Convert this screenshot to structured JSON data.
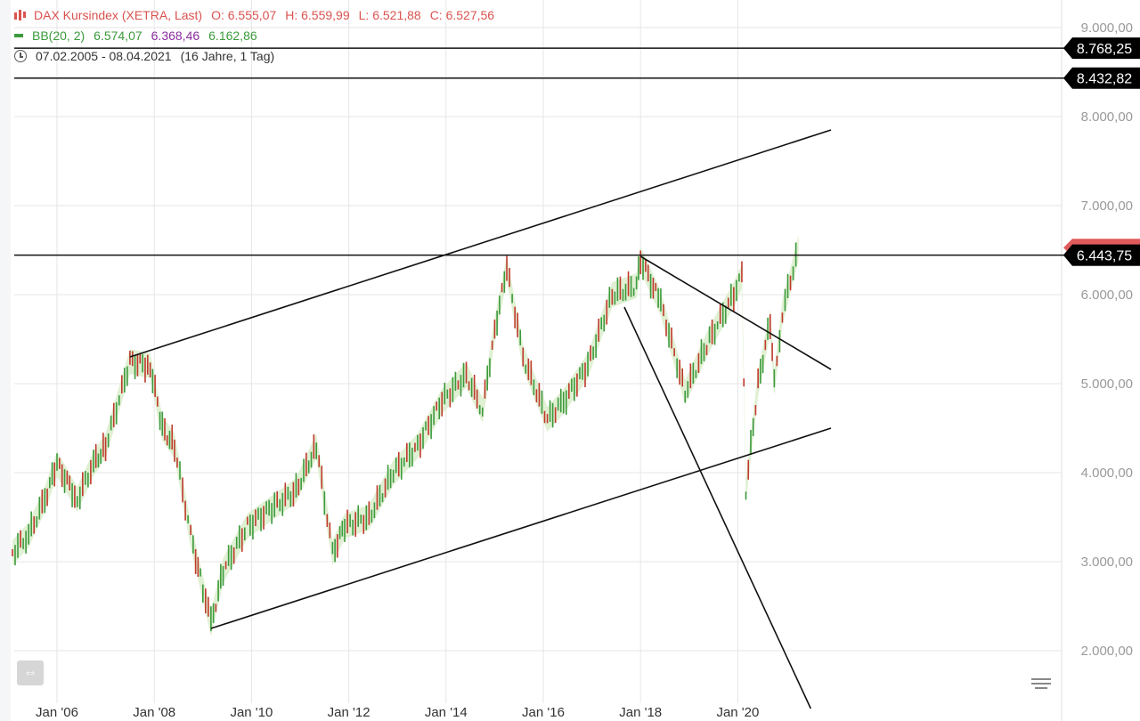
{
  "legend": {
    "instrument": "DAX Kursindex (XETRA, Last)",
    "open": "O: 6.555,07",
    "high": "H: 6.559,99",
    "low": "L: 6.521,88",
    "close": "C: 6.527,56",
    "bb_label": "BB(20, 2)",
    "bb_upper": "6.574,07",
    "bb_mid": "6.368,46",
    "bb_lower": "6.162,86",
    "date_range": "07.02.2005 - 08.04.2021",
    "period": "(16 Jahre, 1 Tag)"
  },
  "colors": {
    "up": "#3c9a3c",
    "down": "#c0392b",
    "band": "#d8ecc8",
    "line": "#111111",
    "grid": "#e6e6e6",
    "axis_text": "#999999",
    "current_tag": "#e05b5b"
  },
  "icons": {
    "legend_candle": "candlestick-icon",
    "legend_bb": "bollinger-icon",
    "legend_time": "clock-icon",
    "scroll": "scroll-handle-icon",
    "menu": "menu-icon"
  },
  "chart_data": {
    "type": "line",
    "title": "DAX Kursindex (XETRA, Last)",
    "x_ticks": [
      "Jan '06",
      "Jan '08",
      "Jan '10",
      "Jan '12",
      "Jan '14",
      "Jan '16",
      "Jan '18",
      "Jan '20"
    ],
    "y_ticks": [
      "9.000,00",
      "8.000,00",
      "7.000,00",
      "6.000,00",
      "5.000,00",
      "4.000,00",
      "3.000,00",
      "2.000,00"
    ],
    "y_tick_values": [
      9000,
      8000,
      7000,
      6000,
      5000,
      4000,
      3000,
      2000
    ],
    "ylim": [
      1600,
      9300
    ],
    "xlim": [
      "2005-02-07",
      "2021-04-08"
    ],
    "grid": true,
    "series": [
      {
        "values": [
          {
            "x": "2005-02",
            "y": 3100
          },
          {
            "x": "2005-06",
            "y": 3300
          },
          {
            "x": "2005-10",
            "y": 3700
          },
          {
            "x": "2006-01",
            "y": 4100
          },
          {
            "x": "2006-06",
            "y": 3700
          },
          {
            "x": "2006-10",
            "y": 4100
          },
          {
            "x": "2007-01",
            "y": 4300
          },
          {
            "x": "2007-07",
            "y": 5250
          },
          {
            "x": "2007-12",
            "y": 5200
          },
          {
            "x": "2008-03",
            "y": 4500
          },
          {
            "x": "2008-06",
            "y": 4300
          },
          {
            "x": "2008-10",
            "y": 3300
          },
          {
            "x": "2009-01",
            "y": 2700
          },
          {
            "x": "2009-03",
            "y": 2300
          },
          {
            "x": "2009-06",
            "y": 2900
          },
          {
            "x": "2009-12",
            "y": 3400
          },
          {
            "x": "2010-06",
            "y": 3600
          },
          {
            "x": "2010-12",
            "y": 3800
          },
          {
            "x": "2011-05",
            "y": 4300
          },
          {
            "x": "2011-09",
            "y": 3100
          },
          {
            "x": "2011-12",
            "y": 3400
          },
          {
            "x": "2012-06",
            "y": 3500
          },
          {
            "x": "2012-12",
            "y": 4000
          },
          {
            "x": "2013-06",
            "y": 4300
          },
          {
            "x": "2013-12",
            "y": 4800
          },
          {
            "x": "2014-06",
            "y": 5100
          },
          {
            "x": "2014-10",
            "y": 4700
          },
          {
            "x": "2015-01",
            "y": 5600
          },
          {
            "x": "2015-04",
            "y": 6300
          },
          {
            "x": "2015-08",
            "y": 5300
          },
          {
            "x": "2016-02",
            "y": 4600
          },
          {
            "x": "2016-06",
            "y": 4800
          },
          {
            "x": "2016-12",
            "y": 5200
          },
          {
            "x": "2017-06",
            "y": 6000
          },
          {
            "x": "2017-12",
            "y": 6100
          },
          {
            "x": "2018-01",
            "y": 6400
          },
          {
            "x": "2018-06",
            "y": 5900
          },
          {
            "x": "2018-12",
            "y": 4900
          },
          {
            "x": "2019-06",
            "y": 5500
          },
          {
            "x": "2019-12",
            "y": 6000
          },
          {
            "x": "2020-02",
            "y": 6200
          },
          {
            "x": "2020-03",
            "y": 3800
          },
          {
            "x": "2020-06",
            "y": 5000
          },
          {
            "x": "2020-09",
            "y": 5700
          },
          {
            "x": "2020-10",
            "y": 5000
          },
          {
            "x": "2020-12",
            "y": 5800
          },
          {
            "x": "2021-04",
            "y": 6527
          }
        ]
      }
    ],
    "bollinger": {
      "upper": 6574.07,
      "middle": 6368.46,
      "lower": 6162.86
    },
    "horizontal_lines": [
      {
        "value": 8768.25,
        "label": "8.768,25"
      },
      {
        "value": 8432.82,
        "label": "8.432,82"
      },
      {
        "value": 6443.75,
        "label": "6.443,75"
      }
    ],
    "current_value": {
      "value": 6527.56
    },
    "trend_lines": [
      {
        "from": {
          "x": "2007-07",
          "y": 5300
        },
        "to": {
          "x": "2021-12",
          "y": 7850
        }
      },
      {
        "from": {
          "x": "2009-03",
          "y": 2250
        },
        "to": {
          "x": "2021-12",
          "y": 4500
        }
      },
      {
        "from": {
          "x": "2018-01",
          "y": 6430
        },
        "to": {
          "x": "2021-12",
          "y": 5160
        }
      },
      {
        "from": {
          "x": "2017-09",
          "y": 5860
        },
        "to": {
          "x": "2021-07",
          "y": 1350
        }
      }
    ]
  }
}
